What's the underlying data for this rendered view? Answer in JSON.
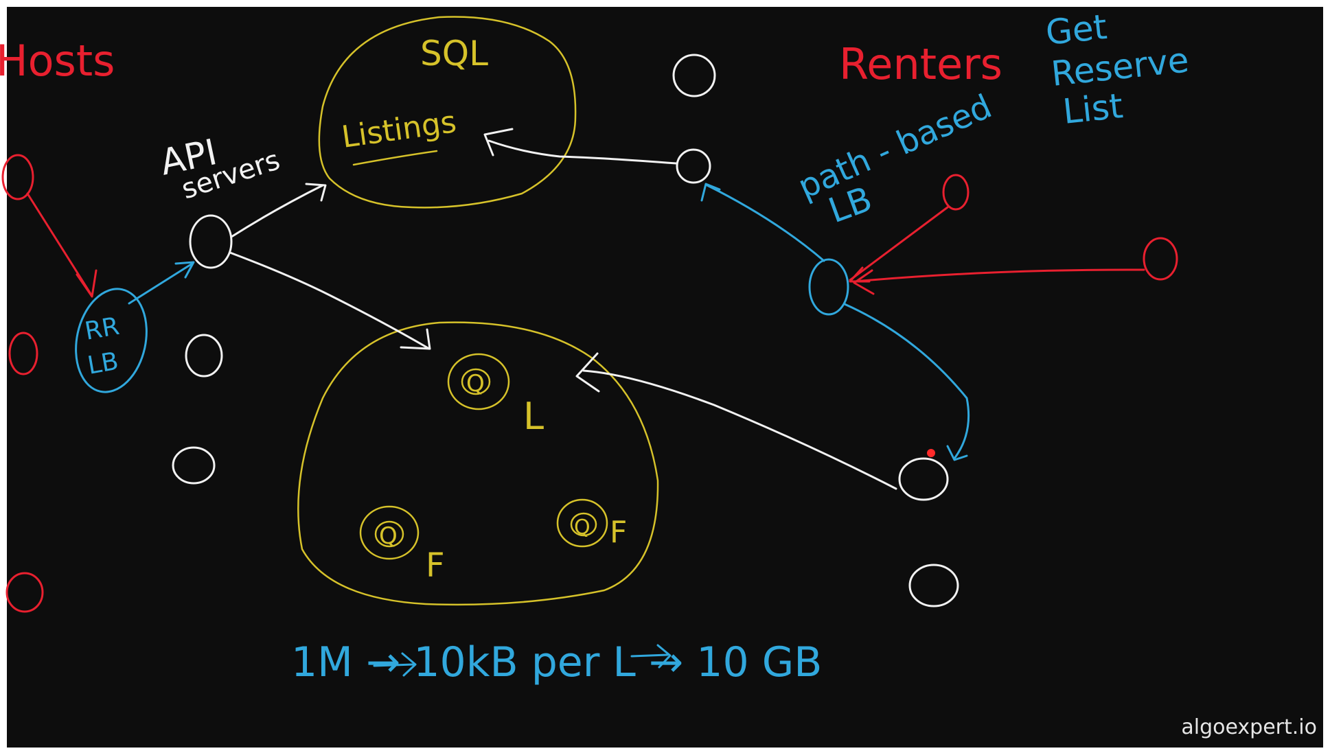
{
  "colors": {
    "background": "#0d0d0d",
    "frame": "#ffffff",
    "red": "#e8202f",
    "blue": "#31a8dd",
    "yellow": "#d6c22a",
    "white": "#f2f2f2",
    "watermark": "#e6e6e6",
    "pointer": "#ff2a2a"
  },
  "labels": {
    "hosts": "Hosts",
    "sql": "SQL",
    "listings": "Listings",
    "api": "API",
    "servers": "servers",
    "rr": "RR",
    "rr_lb": "LB",
    "renters": "Renters",
    "get": "Get",
    "reserve": "Reserve",
    "list": "List",
    "path_based": "path - based",
    "path_lb": "LB",
    "cache_l": "L",
    "cache_f1": "F",
    "cache_f2": "F",
    "queue_q1": "Q",
    "queue_q2": "Q",
    "queue_q3": "Q",
    "math": "1M → 10kB per L → 10 GB"
  },
  "watermark": "algoexpert.io"
}
